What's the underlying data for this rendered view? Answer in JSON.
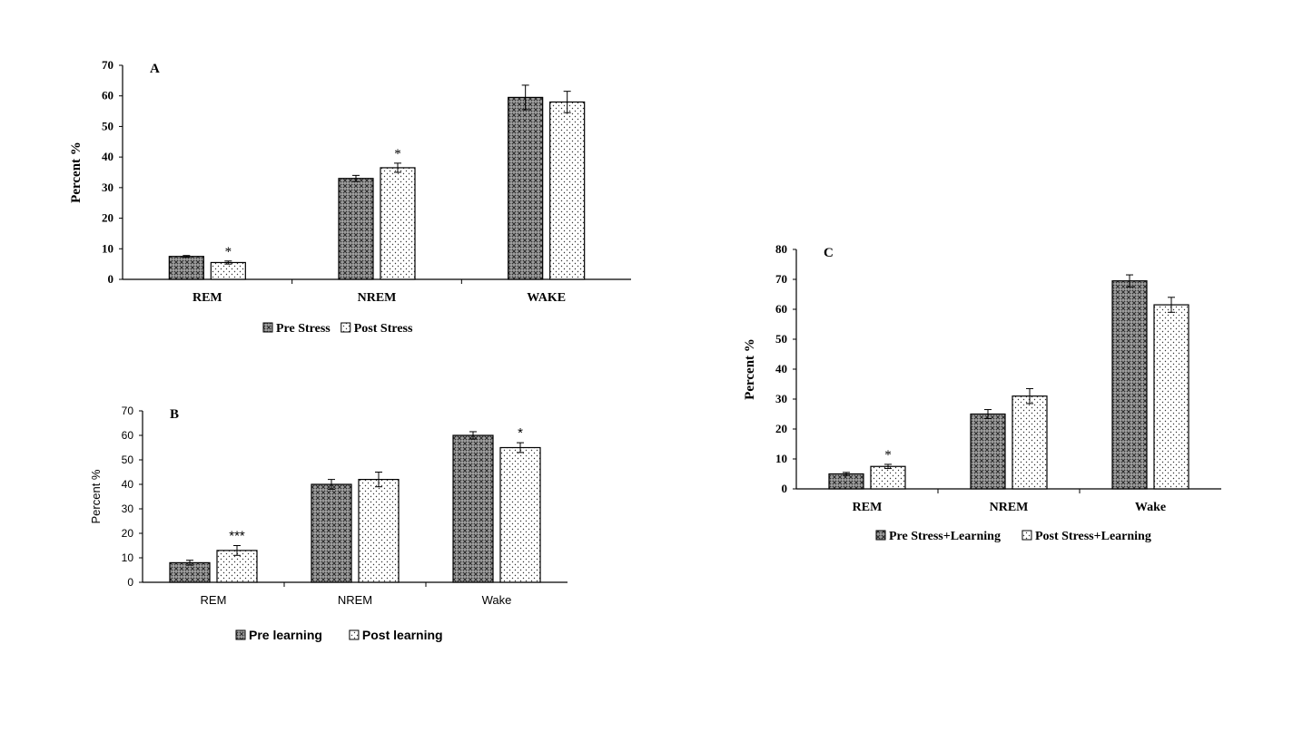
{
  "chart_data": [
    {
      "type": "bar",
      "panel_label": "A",
      "categories": [
        "REM",
        "NREM",
        "WAKE"
      ],
      "ylabel": "Percent %",
      "xlabel": "",
      "ylim": [
        0,
        70
      ],
      "yticks": [
        0,
        10,
        20,
        30,
        40,
        50,
        60,
        70
      ],
      "grid": false,
      "legend": "bottom",
      "series": [
        {
          "name": "Pre Stress",
          "pattern": "cross",
          "values": [
            7.5,
            33,
            59.5
          ],
          "errors": [
            0.3,
            1.0,
            4.0
          ],
          "marks": [
            "",
            "",
            ""
          ]
        },
        {
          "name": "Post Stress",
          "pattern": "dots",
          "values": [
            5.5,
            36.5,
            58
          ],
          "errors": [
            0.5,
            1.5,
            3.5
          ],
          "marks": [
            "*",
            "*",
            ""
          ]
        }
      ]
    },
    {
      "type": "bar",
      "panel_label": "B",
      "categories": [
        "REM",
        "NREM",
        "Wake"
      ],
      "ylabel": "Percent %",
      "xlabel": "",
      "ylim": [
        0,
        70
      ],
      "yticks": [
        0,
        10,
        20,
        30,
        40,
        50,
        60,
        70
      ],
      "grid": false,
      "legend": "bottom",
      "series": [
        {
          "name": "Pre learning",
          "pattern": "cross",
          "values": [
            8,
            40,
            60
          ],
          "errors": [
            1.0,
            2.0,
            1.5
          ],
          "marks": [
            "",
            "",
            ""
          ]
        },
        {
          "name": "Post learning",
          "pattern": "dots",
          "values": [
            13,
            42,
            55
          ],
          "errors": [
            2.0,
            3.0,
            2.0
          ],
          "marks": [
            "***",
            "",
            "*"
          ]
        }
      ]
    },
    {
      "type": "bar",
      "panel_label": "C",
      "categories": [
        "REM",
        "NREM",
        "Wake"
      ],
      "ylabel": "Percent %",
      "xlabel": "",
      "ylim": [
        0,
        80
      ],
      "yticks": [
        0,
        10,
        20,
        30,
        40,
        50,
        60,
        70,
        80
      ],
      "grid": false,
      "legend": "bottom",
      "series": [
        {
          "name": "Pre Stress+Learning",
          "pattern": "cross",
          "values": [
            5,
            25,
            69.5
          ],
          "errors": [
            0.5,
            1.5,
            2.0
          ],
          "marks": [
            "",
            "",
            ""
          ]
        },
        {
          "name": "Post Stress+Learning",
          "pattern": "dots",
          "values": [
            7.5,
            31,
            61.5
          ],
          "errors": [
            0.7,
            2.5,
            2.5
          ],
          "marks": [
            "*",
            "",
            ""
          ]
        }
      ]
    }
  ]
}
